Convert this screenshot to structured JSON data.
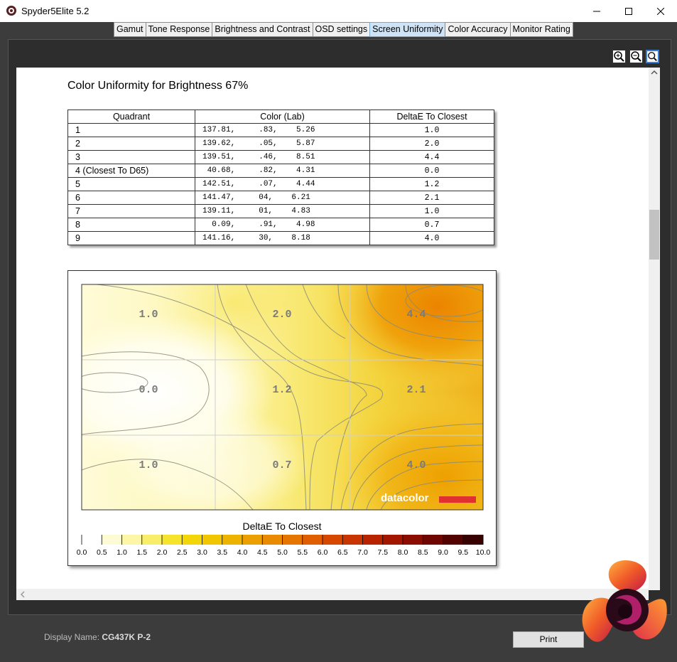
{
  "window": {
    "title": "Spyder5Elite 5.2",
    "minimize": "—",
    "maximize": "☐",
    "close": "✕"
  },
  "tabs": [
    {
      "label": "Gamut",
      "active": false
    },
    {
      "label": "Tone Response",
      "active": false
    },
    {
      "label": "Brightness and Contrast",
      "active": false
    },
    {
      "label": "OSD settings",
      "active": false
    },
    {
      "label": "Screen Uniformity",
      "active": true
    },
    {
      "label": "Color Accuracy",
      "active": false
    },
    {
      "label": "Monitor Rating",
      "active": false
    }
  ],
  "zoom": {
    "icons": [
      "zoom-in-icon",
      "zoom-out-icon",
      "zoom-reset-icon"
    ]
  },
  "report": {
    "title": "Color Uniformity for Brightness 67%",
    "table": {
      "headers": [
        "Quadrant",
        "Color (Lab)",
        "DeltaE To Closest"
      ],
      "rows": [
        {
          "quadrant": "1",
          "lab": "137.81,     .83,    5.26",
          "delta": "1.0"
        },
        {
          "quadrant": "2",
          "lab": "139.62,     .05,    5.87",
          "delta": "2.0"
        },
        {
          "quadrant": "3",
          "lab": "139.51,     .46,    8.51",
          "delta": "4.4"
        },
        {
          "quadrant": "4 (Closest To D65)",
          "lab": " 40.68,     .82,    4.31",
          "delta": "0.0"
        },
        {
          "quadrant": "5",
          "lab": "142.51,     .07,    4.44",
          "delta": "1.2"
        },
        {
          "quadrant": "6",
          "lab": "141.47,     04,    6.21",
          "delta": "2.1"
        },
        {
          "quadrant": "7",
          "lab": "139.11,     01,    4.83",
          "delta": "1.0"
        },
        {
          "quadrant": "8",
          "lab": "  0.09,     .91,    4.98",
          "delta": "0.7"
        },
        {
          "quadrant": "9",
          "lab": "141.16,     30,    8.18",
          "delta": "4.0"
        }
      ]
    },
    "heatmap": {
      "cells": [
        "1.0",
        "2.0",
        "4.4",
        "0.0",
        "1.2",
        "2.1",
        "1.0",
        "0.7",
        "4.0"
      ],
      "watermark": "datacolor",
      "legend_title": "DeltaE To Closest",
      "legend_ticks": [
        "0.0",
        "0.5",
        "1.0",
        "1.5",
        "2.0",
        "2.5",
        "3.0",
        "3.5",
        "4.0",
        "4.5",
        "5.0",
        "5.5",
        "6.0",
        "6.5",
        "7.0",
        "7.5",
        "8.0",
        "8.5",
        "9.0",
        "9.5",
        "10.0"
      ],
      "legend_colors": [
        "#ffffff",
        "#fdfbd4",
        "#fcf6a6",
        "#f9ee6a",
        "#f6e32c",
        "#f3d60a",
        "#f1c600",
        "#eeb300",
        "#ec9f00",
        "#e98b00",
        "#e67500",
        "#e05e00",
        "#d64800",
        "#c93500",
        "#b82400",
        "#a31600",
        "#8a0d00",
        "#6e0700",
        "#520300",
        "#360100"
      ]
    }
  },
  "footer": {
    "display_label": "Display Name:",
    "display_value": "CG437K P-2",
    "print_label": "Print"
  }
}
